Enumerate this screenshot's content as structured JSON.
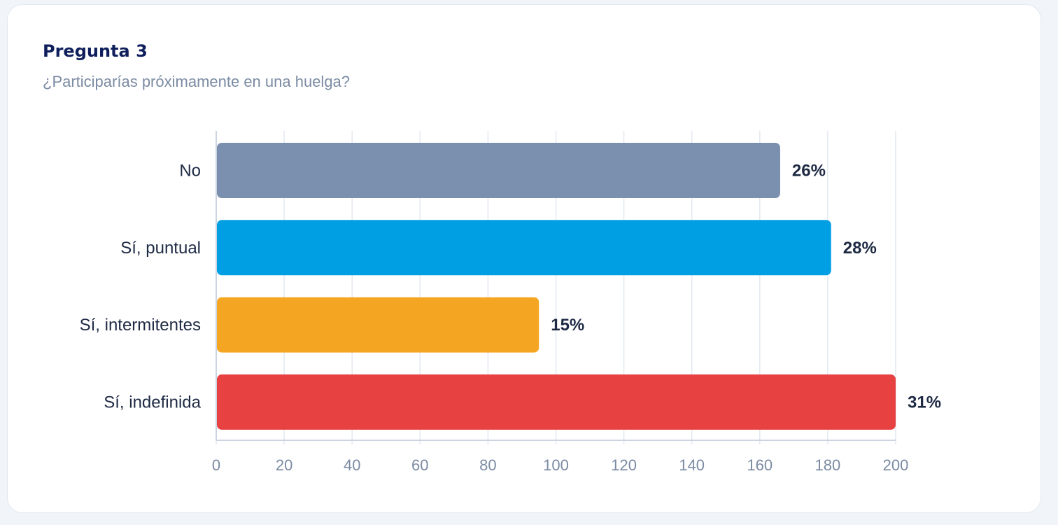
{
  "card": {
    "title": "Pregunta 3",
    "subtitle": "¿Participarías próximamente en una huelga?"
  },
  "colors": {
    "title": "#0f1f5c",
    "subtitle": "#7b8ba3",
    "grid": "#e2e8f0",
    "axis": "#cbd5e1"
  },
  "chart_data": {
    "type": "bar",
    "orientation": "horizontal",
    "categories": [
      "No",
      "Sí, puntual",
      "Sí, intermitentes",
      "Sí, indefinida"
    ],
    "values": [
      166,
      181,
      95,
      200
    ],
    "value_labels": [
      "26%",
      "28%",
      "15%",
      "31%"
    ],
    "bar_colors": [
      "#7b8fae",
      "#009fe3",
      "#f4a623",
      "#e84142"
    ],
    "xlim": [
      0,
      200
    ],
    "xticks": [
      0,
      20,
      40,
      60,
      80,
      100,
      120,
      140,
      160,
      180,
      200
    ],
    "grid": true,
    "legend": "none"
  }
}
